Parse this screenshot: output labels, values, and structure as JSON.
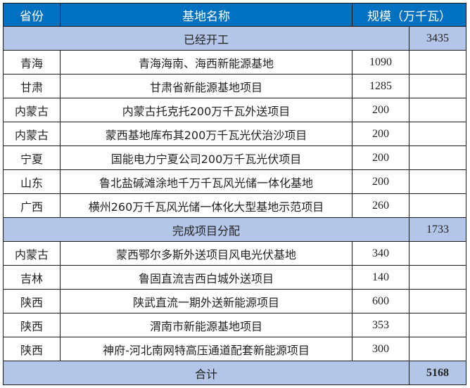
{
  "header": {
    "province": "省份",
    "name": "基地名称",
    "scale": "规模（万千瓦）"
  },
  "sections": [
    {
      "title": "已经开工",
      "subtotal": "3435",
      "rows": [
        {
          "province": "青海",
          "name": "青海海南、海西新能源基地",
          "scale": "1090"
        },
        {
          "province": "甘肃",
          "name": "甘肃省新能源基地项目",
          "scale": "1285"
        },
        {
          "province": "内蒙古",
          "name": "内蒙古托克托200万千瓦外送项目",
          "scale": "200"
        },
        {
          "province": "内蒙古",
          "name": "蒙西基地库布其200万千瓦光伏治沙项目",
          "scale": "200"
        },
        {
          "province": "宁夏",
          "name": "国能电力宁夏公司200万千瓦光伏项目",
          "scale": "200"
        },
        {
          "province": "山东",
          "name": "鲁北盐碱滩涂地千万千瓦风光储一体化基地",
          "scale": "200"
        },
        {
          "province": "广西",
          "name": "横州260万千瓦风光储一体化大型基地示范项目",
          "scale": "260"
        }
      ]
    },
    {
      "title": "完成项目分配",
      "subtotal": "1733",
      "rows": [
        {
          "province": "内蒙古",
          "name": "蒙西鄂尔多斯外送项目风电光伏基地",
          "scale": "340"
        },
        {
          "province": "吉林",
          "name": "鲁固直流吉西白城外送项目",
          "scale": "140"
        },
        {
          "province": "陕西",
          "name": "陕武直流一期外送新能源项目",
          "scale": "600"
        },
        {
          "province": "陕西",
          "name": "渭南市新能源基地项目",
          "scale": "353"
        },
        {
          "province": "陕西",
          "name": "神府-河北南网特高压通道配套新能源项目",
          "scale": "300"
        }
      ]
    }
  ],
  "total": {
    "label": "合计",
    "value": "5168"
  },
  "colors": {
    "header": "#0070c0",
    "section": "#b4c6e7"
  }
}
